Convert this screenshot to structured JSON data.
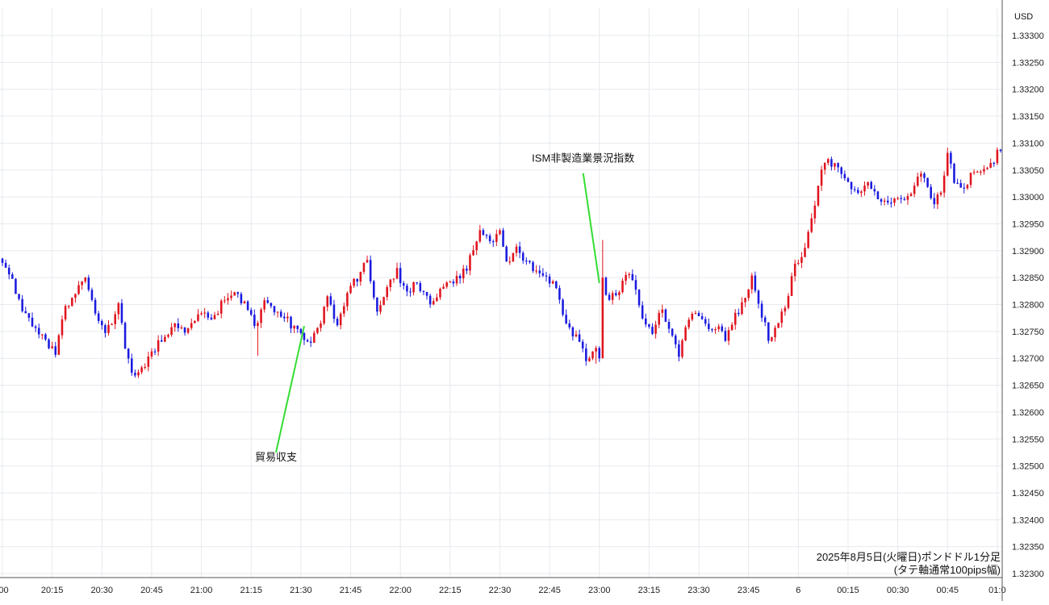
{
  "chart_data": {
    "type": "candlestick",
    "unit_label": "USD",
    "y_ticks": [
      "1.33300",
      "1.33250",
      "1.33200",
      "1.33150",
      "1.33100",
      "1.33050",
      "1.33000",
      "1.32950",
      "1.32900",
      "1.32850",
      "1.32800",
      "1.32750",
      "1.32700",
      "1.32650",
      "1.32600",
      "1.32550",
      "1.32500",
      "1.32450",
      "1.32400",
      "1.32350",
      "1.32300"
    ],
    "ylim": [
      1.3228,
      1.3333
    ],
    "x_ticks": [
      {
        "label": ":00",
        "t": 0
      },
      {
        "label": "20:15",
        "t": 15
      },
      {
        "label": "20:30",
        "t": 30
      },
      {
        "label": "20:45",
        "t": 45
      },
      {
        "label": "21:00",
        "t": 60
      },
      {
        "label": "21:15",
        "t": 75
      },
      {
        "label": "21:30",
        "t": 90
      },
      {
        "label": "21:45",
        "t": 105
      },
      {
        "label": "22:00",
        "t": 120
      },
      {
        "label": "22:15",
        "t": 135
      },
      {
        "label": "22:30",
        "t": 150
      },
      {
        "label": "22:45",
        "t": 165
      },
      {
        "label": "23:00",
        "t": 180
      },
      {
        "label": "23:15",
        "t": 195
      },
      {
        "label": "23:30",
        "t": 210
      },
      {
        "label": "23:45",
        "t": 225
      },
      {
        "label": "6",
        "t": 240
      },
      {
        "label": "00:15",
        "t": 255
      },
      {
        "label": "00:30",
        "t": 270
      },
      {
        "label": "00:45",
        "t": 285
      },
      {
        "label": "01:0",
        "t": 300
      }
    ],
    "x_range": [
      0,
      302
    ],
    "grid": true,
    "up_color": "#e0141e",
    "down_color": "#1a1adf",
    "anchors": [
      [
        0,
        1.3288
      ],
      [
        3,
        1.3284
      ],
      [
        6,
        1.3279
      ],
      [
        9,
        1.3276
      ],
      [
        12,
        1.3274
      ],
      [
        16,
        1.3271
      ],
      [
        18,
        1.3278
      ],
      [
        22,
        1.3282
      ],
      [
        25,
        1.32845
      ],
      [
        28,
        1.3279
      ],
      [
        31,
        1.3274
      ],
      [
        35,
        1.328
      ],
      [
        37,
        1.3272
      ],
      [
        39,
        1.3267
      ],
      [
        43,
        1.3269
      ],
      [
        47,
        1.3273
      ],
      [
        52,
        1.3276
      ],
      [
        56,
        1.3275
      ],
      [
        60,
        1.3279
      ],
      [
        63,
        1.3277
      ],
      [
        67,
        1.3281
      ],
      [
        70,
        1.3283
      ],
      [
        73,
        1.328
      ],
      [
        76,
        1.3276
      ],
      [
        79,
        1.328
      ],
      [
        82,
        1.3279
      ],
      [
        86,
        1.3277
      ],
      [
        89,
        1.3275
      ],
      [
        92,
        1.3273
      ],
      [
        95,
        1.3275
      ],
      [
        98,
        1.3281
      ],
      [
        101,
        1.3276
      ],
      [
        104,
        1.3282
      ],
      [
        107,
        1.3285
      ],
      [
        110,
        1.3288
      ],
      [
        113,
        1.3279
      ],
      [
        116,
        1.3283
      ],
      [
        119,
        1.3286
      ],
      [
        122,
        1.3282
      ],
      [
        125,
        1.3284
      ],
      [
        129,
        1.328
      ],
      [
        132,
        1.3283
      ],
      [
        136,
        1.3284
      ],
      [
        140,
        1.3287
      ],
      [
        144,
        1.3294
      ],
      [
        147,
        1.3291
      ],
      [
        150,
        1.3294
      ],
      [
        152,
        1.3288
      ],
      [
        155,
        1.329
      ],
      [
        158,
        1.3288
      ],
      [
        161,
        1.3286
      ],
      [
        164,
        1.3285
      ],
      [
        167,
        1.3283
      ],
      [
        170,
        1.3276
      ],
      [
        173,
        1.3274
      ],
      [
        176,
        1.327
      ],
      [
        179,
        1.3272
      ],
      [
        181,
        1.3284
      ],
      [
        183,
        1.3281
      ],
      [
        186,
        1.3282
      ],
      [
        188,
        1.3286
      ],
      [
        190,
        1.3284
      ],
      [
        193,
        1.3278
      ],
      [
        196,
        1.3275
      ],
      [
        199,
        1.3279
      ],
      [
        201,
        1.3276
      ],
      [
        204,
        1.327
      ],
      [
        206,
        1.3276
      ],
      [
        209,
        1.3279
      ],
      [
        212,
        1.3276
      ],
      [
        215,
        1.3276
      ],
      [
        218,
        1.3274
      ],
      [
        221,
        1.3278
      ],
      [
        224,
        1.3281
      ],
      [
        226,
        1.3285
      ],
      [
        228,
        1.328
      ],
      [
        231,
        1.3274
      ],
      [
        234,
        1.3276
      ],
      [
        236,
        1.328
      ],
      [
        239,
        1.3287
      ],
      [
        242,
        1.329
      ],
      [
        244,
        1.3296
      ],
      [
        246,
        1.3302
      ],
      [
        248,
        1.3307
      ],
      [
        250,
        1.3306
      ],
      [
        252,
        1.3305
      ],
      [
        255,
        1.3303
      ],
      [
        258,
        1.33
      ],
      [
        261,
        1.3302
      ],
      [
        264,
        1.33
      ],
      [
        267,
        1.3299
      ],
      [
        270,
        1.3299
      ],
      [
        273,
        1.33
      ],
      [
        276,
        1.3304
      ],
      [
        278,
        1.3304
      ],
      [
        280,
        1.3299
      ],
      [
        283,
        1.33
      ],
      [
        285,
        1.3308
      ],
      [
        287,
        1.3303
      ],
      [
        290,
        1.3301
      ],
      [
        292,
        1.3305
      ],
      [
        295,
        1.3304
      ],
      [
        298,
        1.3306
      ],
      [
        301,
        1.3309
      ]
    ],
    "annotations": [
      {
        "text": "ISM非製造業景況指数",
        "target_t": 180,
        "target_y": 1.3284,
        "label_y": 1.33065
      },
      {
        "text": "貿易収支",
        "target_t": 91,
        "target_y": 1.3276,
        "label_y": 1.3251
      }
    ],
    "annotation_line_color": "#33dd33"
  },
  "caption": {
    "line1": "2025年8月5日(火曜日)ポンドドル1分足",
    "line2": "(タテ軸通常100pips幅)"
  }
}
